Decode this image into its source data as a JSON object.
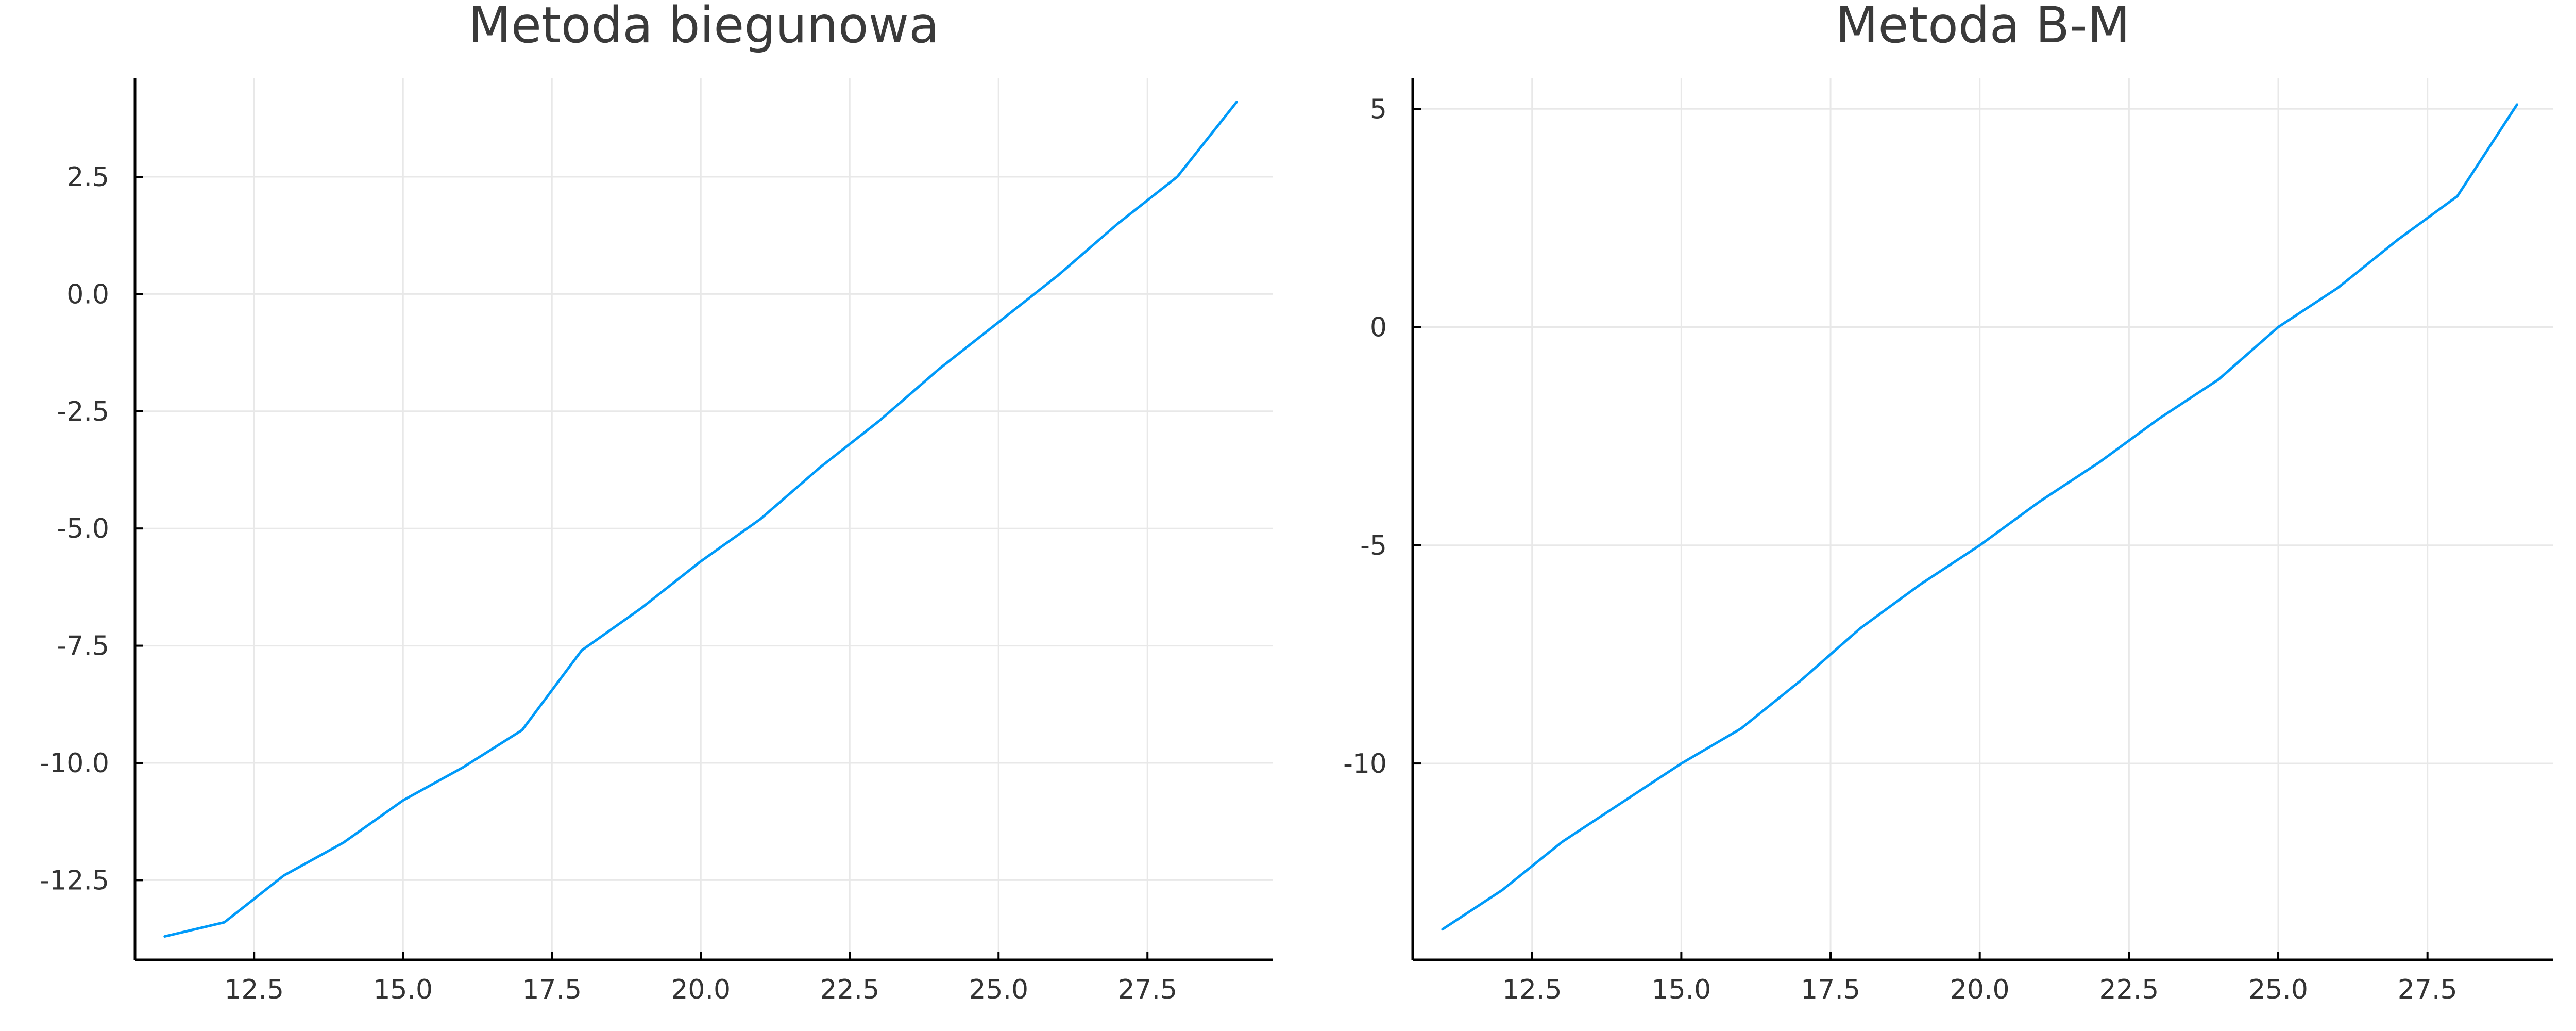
{
  "colors": {
    "series": "#009AF9"
  },
  "chart_data": [
    {
      "type": "line",
      "title": "Metoda biegunowa",
      "xlabel": "",
      "ylabel": "",
      "grid": true,
      "xlim": [
        10.5,
        29.6
      ],
      "ylim": [
        -14.2,
        4.6
      ],
      "xticks": [
        12.5,
        15.0,
        17.5,
        20.0,
        22.5,
        25.0,
        27.5
      ],
      "xtick_labels": [
        "12.5",
        "15.0",
        "17.5",
        "20.0",
        "22.5",
        "25.0",
        "27.5"
      ],
      "yticks": [
        2.5,
        0.0,
        -2.5,
        -5.0,
        -7.5,
        -10.0,
        -12.5
      ],
      "ytick_labels": [
        "2.5",
        "0.0",
        "-2.5",
        "-5.0",
        "-7.5",
        "-10.0",
        "-12.5"
      ],
      "series": [
        {
          "x": [
            11,
            12,
            13,
            14,
            15,
            16,
            17,
            18,
            19,
            20,
            21,
            22,
            23,
            24,
            25,
            26,
            27,
            28,
            29
          ],
          "values": [
            -13.7,
            -13.4,
            -12.4,
            -11.7,
            -10.8,
            -10.1,
            -9.3,
            -7.6,
            -6.7,
            -5.7,
            -4.8,
            -3.7,
            -2.7,
            -1.6,
            -0.6,
            0.4,
            1.5,
            2.5,
            4.1
          ]
        }
      ]
    },
    {
      "type": "line",
      "title": "Metoda B-M",
      "xlabel": "",
      "ylabel": "",
      "grid": true,
      "xlim": [
        10.5,
        29.6
      ],
      "ylim": [
        -14.5,
        5.7
      ],
      "xticks": [
        12.5,
        15.0,
        17.5,
        20.0,
        22.5,
        25.0,
        27.5
      ],
      "xtick_labels": [
        "12.5",
        "15.0",
        "17.5",
        "20.0",
        "22.5",
        "25.0",
        "27.5"
      ],
      "yticks": [
        5,
        0,
        -5,
        -10
      ],
      "ytick_labels": [
        "5",
        "0",
        "-5",
        "-10"
      ],
      "series": [
        {
          "x": [
            11,
            12,
            13,
            14,
            15,
            16,
            17,
            18,
            19,
            20,
            21,
            22,
            23,
            24,
            25,
            26,
            27,
            28,
            29
          ],
          "values": [
            -13.8,
            -12.9,
            -11.8,
            -10.9,
            -10.0,
            -9.2,
            -8.1,
            -6.9,
            -5.9,
            -5.0,
            -4.0,
            -3.1,
            -2.1,
            -1.2,
            0.0,
            0.9,
            2.0,
            3.0,
            5.1
          ]
        }
      ]
    }
  ]
}
